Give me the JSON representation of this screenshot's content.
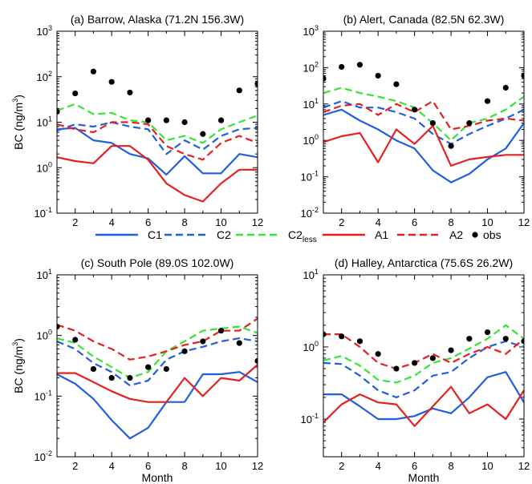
{
  "chart_data": [
    {
      "type": "line",
      "title": "(a) Barrow, Alaska (71.2N 156.3W)",
      "xlabel": "",
      "ylabel": "BC (ng/m3)",
      "yscale": "log",
      "xlim": [
        1,
        12
      ],
      "ylim": [
        0.1,
        1000
      ],
      "x": [
        1,
        2,
        3,
        4,
        5,
        6,
        7,
        8,
        9,
        10,
        11,
        12
      ],
      "xticks": [
        2,
        4,
        6,
        8,
        10,
        12
      ],
      "yticks": [
        0.1,
        1,
        10,
        100,
        1000
      ],
      "series": [
        {
          "name": "C1",
          "values": [
            7,
            7.5,
            4,
            3.5,
            2,
            1.6,
            0.7,
            1.8,
            0.75,
            0.75,
            2,
            1.7
          ]
        },
        {
          "name": "C2",
          "values": [
            6.5,
            9,
            8,
            10,
            8,
            7,
            2,
            4,
            2.5,
            5,
            7,
            7.5
          ]
        },
        {
          "name": "C2less",
          "values": [
            18,
            25,
            15,
            16,
            11,
            10,
            4,
            5,
            3.5,
            7,
            10,
            14
          ]
        },
        {
          "name": "A1",
          "values": [
            1.7,
            1.4,
            1.25,
            3,
            3,
            1.5,
            0.45,
            0.25,
            0.18,
            0.45,
            0.9,
            0.9
          ]
        },
        {
          "name": "A2",
          "values": [
            9,
            7,
            6,
            10,
            10,
            9,
            3,
            2,
            1.5,
            3.5,
            5,
            3.5
          ]
        },
        {
          "name": "obs",
          "values": [
            17,
            43,
            130,
            77,
            45,
            11,
            11,
            10,
            5.5,
            11,
            50,
            70
          ]
        }
      ]
    },
    {
      "type": "line",
      "title": "(b) Alert, Canada (82.5N 62.3W)",
      "xlabel": "",
      "ylabel": "",
      "yscale": "log",
      "xlim": [
        1,
        12
      ],
      "ylim": [
        0.01,
        1000
      ],
      "x": [
        1,
        2,
        3,
        4,
        5,
        6,
        7,
        8,
        9,
        10,
        11,
        12
      ],
      "xticks": [
        2,
        4,
        6,
        8,
        10,
        12
      ],
      "yticks": [
        0.01,
        0.1,
        1,
        10,
        100,
        1000
      ],
      "series": [
        {
          "name": "C1",
          "values": [
            5,
            7,
            3.5,
            2,
            1,
            0.6,
            0.15,
            0.07,
            0.12,
            0.3,
            0.6,
            3
          ]
        },
        {
          "name": "C2",
          "values": [
            8,
            12,
            8,
            8,
            6,
            4,
            1.5,
            0.8,
            1.5,
            2.5,
            4,
            7
          ]
        },
        {
          "name": "C2less",
          "values": [
            20,
            28,
            20,
            16,
            12,
            8,
            3,
            1,
            3,
            4,
            7,
            16
          ]
        },
        {
          "name": "A1",
          "values": [
            0.9,
            1.3,
            1.6,
            0.25,
            2,
            0.8,
            2.5,
            0.2,
            0.3,
            0.35,
            0.4,
            0.4
          ]
        },
        {
          "name": "A2",
          "values": [
            6,
            9,
            10,
            5,
            10,
            6,
            12,
            2,
            2.5,
            3.5,
            4,
            3.5
          ]
        },
        {
          "name": "obs",
          "values": [
            50,
            105,
            120,
            60,
            35,
            7,
            3,
            0.7,
            3,
            12,
            28,
            60
          ]
        }
      ]
    },
    {
      "type": "line",
      "title": "(c) South Pole (89.0S 102.0W)",
      "xlabel": "Month",
      "ylabel": "BC (ng/m3)",
      "yscale": "log",
      "xlim": [
        1,
        12
      ],
      "ylim": [
        0.01,
        10
      ],
      "x": [
        1,
        2,
        3,
        4,
        5,
        6,
        7,
        8,
        9,
        10,
        11,
        12
      ],
      "xticks": [
        2,
        4,
        6,
        8,
        10,
        12
      ],
      "yticks": [
        0.01,
        0.1,
        1,
        10
      ],
      "series": [
        {
          "name": "C1",
          "values": [
            0.23,
            0.16,
            0.09,
            0.04,
            0.02,
            0.03,
            0.08,
            0.08,
            0.23,
            0.23,
            0.25,
            0.17
          ]
        },
        {
          "name": "C2",
          "values": [
            0.8,
            0.6,
            0.35,
            0.25,
            0.15,
            0.18,
            0.4,
            0.55,
            0.65,
            0.8,
            0.9,
            0.8
          ]
        },
        {
          "name": "C2less",
          "values": [
            0.9,
            0.75,
            0.45,
            0.3,
            0.2,
            0.25,
            0.55,
            0.8,
            1.2,
            1.3,
            1.4,
            1.1
          ]
        },
        {
          "name": "A1",
          "values": [
            0.24,
            0.24,
            0.17,
            0.12,
            0.09,
            0.08,
            0.08,
            0.2,
            0.1,
            0.2,
            0.18,
            0.33
          ]
        },
        {
          "name": "A2",
          "values": [
            1.5,
            1.2,
            0.8,
            0.6,
            0.4,
            0.45,
            0.55,
            0.7,
            0.8,
            1.2,
            1.2,
            1.9
          ]
        },
        {
          "name": "obs",
          "values": [
            1.4,
            0.85,
            0.28,
            0.2,
            0.2,
            0.3,
            0.28,
            0.55,
            0.8,
            1.2,
            0.75,
            0.38
          ]
        }
      ]
    },
    {
      "type": "line",
      "title": "(d) Halley, Antarctica (75.6S 26.2W)",
      "xlabel": "Month",
      "ylabel": "",
      "yscale": "log",
      "xlim": [
        1,
        12
      ],
      "ylim": [
        0.03,
        10
      ],
      "x": [
        1,
        2,
        3,
        4,
        5,
        6,
        7,
        8,
        9,
        10,
        11,
        12
      ],
      "xticks": [
        2,
        4,
        6,
        8,
        10,
        12
      ],
      "yticks": [
        0.1,
        1,
        10
      ],
      "series": [
        {
          "name": "C1",
          "values": [
            0.22,
            0.22,
            0.15,
            0.1,
            0.1,
            0.11,
            0.14,
            0.12,
            0.2,
            0.38,
            0.45,
            0.17
          ]
        },
        {
          "name": "C2",
          "values": [
            0.6,
            0.58,
            0.4,
            0.25,
            0.2,
            0.25,
            0.4,
            0.45,
            0.7,
            1.0,
            1.2,
            1.0
          ]
        },
        {
          "name": "C2less",
          "values": [
            0.65,
            0.75,
            0.55,
            0.35,
            0.32,
            0.4,
            0.6,
            0.7,
            0.95,
            1.3,
            2.0,
            1.3
          ]
        },
        {
          "name": "A1",
          "values": [
            0.09,
            0.16,
            0.22,
            0.17,
            0.16,
            0.08,
            0.15,
            0.28,
            0.12,
            0.16,
            0.1,
            0.25
          ]
        },
        {
          "name": "A2",
          "values": [
            1.5,
            1.5,
            1.0,
            0.6,
            0.5,
            0.6,
            0.8,
            0.6,
            0.8,
            1.0,
            0.8,
            1.3
          ]
        },
        {
          "name": "obs",
          "values": [
            1.5,
            1.4,
            1.2,
            0.8,
            0.5,
            0.6,
            0.7,
            0.9,
            1.3,
            1.6,
            1.3,
            1.2
          ]
        }
      ]
    }
  ],
  "legend": {
    "placement": "between-rows",
    "entries": [
      {
        "label": "C1",
        "color": "#1f5fe0",
        "style": "solid"
      },
      {
        "label": "C2",
        "color": "#1f5fe0",
        "style": "dashed"
      },
      {
        "label": "C2",
        "sub": "less",
        "color": "#33e633",
        "style": "dashed"
      },
      {
        "label": "A1",
        "color": "#e62020",
        "style": "solid"
      },
      {
        "label": "A2",
        "color": "#e62020",
        "style": "dashed"
      },
      {
        "label": "obs",
        "color": "#000000",
        "style": "dot"
      }
    ]
  },
  "series_styles": {
    "C1": {
      "color": "#1f5fe0",
      "dash": ""
    },
    "C2": {
      "color": "#1f5fe0",
      "dash": "9,5"
    },
    "C2less": {
      "color": "#33e633",
      "dash": "9,5"
    },
    "A1": {
      "color": "#e62020",
      "dash": ""
    },
    "A2": {
      "color": "#e62020",
      "dash": "9,5"
    },
    "obs": {
      "color": "#000000",
      "dash": "dot"
    }
  }
}
